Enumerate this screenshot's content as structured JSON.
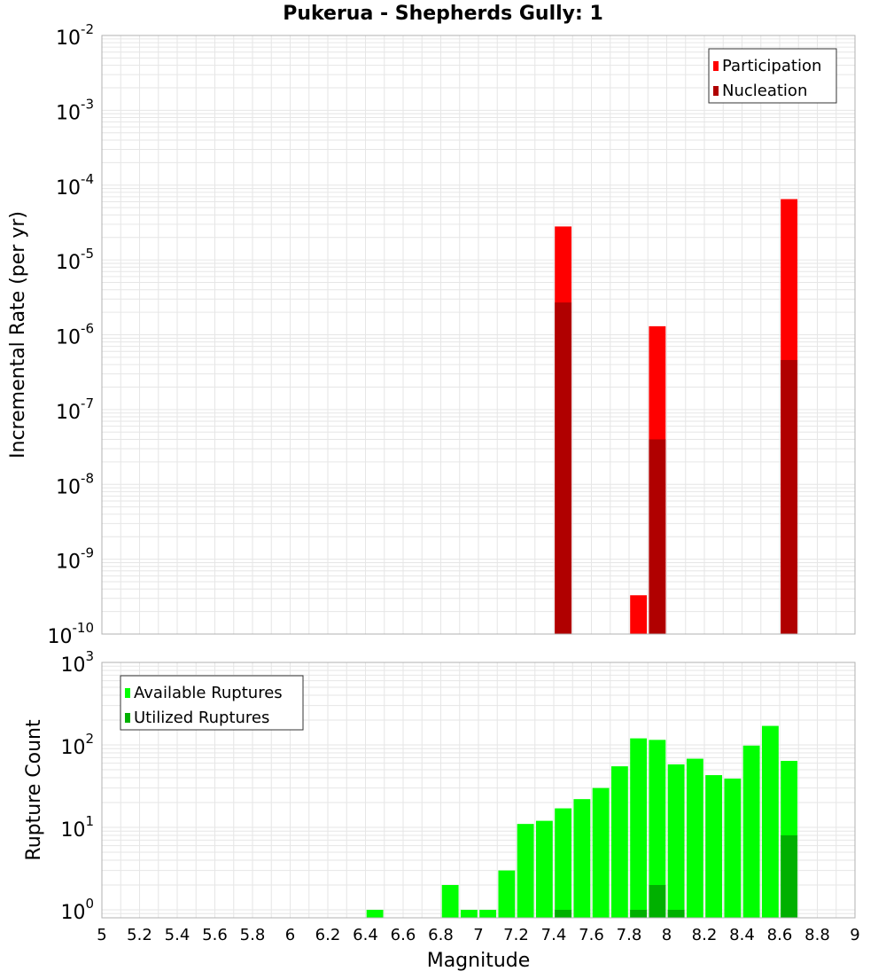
{
  "title": "Pukerua - Shepherds Gully: 1",
  "xlabel": "Magnitude",
  "x_ticks": [
    "5",
    "5.2",
    "5.4",
    "5.6",
    "5.8",
    "6",
    "6.2",
    "6.4",
    "6.6",
    "6.8",
    "7",
    "7.2",
    "7.4",
    "7.6",
    "7.8",
    "8",
    "8.2",
    "8.4",
    "8.6",
    "8.8",
    "9"
  ],
  "colors": {
    "participation": "#ff0000",
    "nucleation": "#b00000",
    "available": "#00ff00",
    "utilized": "#00b000",
    "grid": "#e6e6e6",
    "frame": "#b0b0b0"
  },
  "chart_data": [
    {
      "type": "bar",
      "ylabel": "Incremental Rate (per yr)",
      "scale": "log",
      "ylim": [
        1e-10,
        0.01
      ],
      "xlim": [
        5,
        9
      ],
      "bin_width": 0.1,
      "grid": true,
      "legend_position": "top-right",
      "y_ticks": [
        {
          "base": "10",
          "exp": "-10"
        },
        {
          "base": "10",
          "exp": "-9"
        },
        {
          "base": "10",
          "exp": "-8"
        },
        {
          "base": "10",
          "exp": "-7"
        },
        {
          "base": "10",
          "exp": "-6"
        },
        {
          "base": "10",
          "exp": "-5"
        },
        {
          "base": "10",
          "exp": "-4"
        },
        {
          "base": "10",
          "exp": "-3"
        },
        {
          "base": "10",
          "exp": "-2"
        }
      ],
      "series": [
        {
          "name": "Participation",
          "color": "#ff0000",
          "x": [
            7.45,
            7.85,
            7.95,
            8.65
          ],
          "values": [
            2.8e-05,
            3.3e-10,
            1.3e-06,
            6.5e-05
          ]
        },
        {
          "name": "Nucleation",
          "color": "#b00000",
          "x": [
            7.45,
            7.95,
            8.65
          ],
          "values": [
            2.7e-06,
            4e-08,
            4.6e-07
          ]
        }
      ]
    },
    {
      "type": "bar",
      "ylabel": "Rupture Count",
      "scale": "log",
      "ylim": [
        0.8,
        1000
      ],
      "xlim": [
        5,
        9
      ],
      "bin_width": 0.1,
      "grid": true,
      "legend_position": "top-left",
      "y_ticks": [
        {
          "base": "10",
          "exp": "0"
        },
        {
          "base": "10",
          "exp": "1"
        },
        {
          "base": "10",
          "exp": "2"
        },
        {
          "base": "10",
          "exp": "3"
        }
      ],
      "series": [
        {
          "name": "Available Ruptures",
          "color": "#00ff00",
          "x": [
            6.45,
            6.85,
            6.95,
            7.05,
            7.15,
            7.25,
            7.35,
            7.45,
            7.55,
            7.65,
            7.75,
            7.85,
            7.95,
            8.05,
            8.15,
            8.25,
            8.35,
            8.45,
            8.55,
            8.65
          ],
          "values": [
            1,
            2,
            1,
            1,
            3,
            11,
            12,
            17,
            22,
            30,
            55,
            120,
            115,
            58,
            68,
            43,
            39,
            98,
            170,
            64
          ]
        },
        {
          "name": "Utilized Ruptures",
          "color": "#00b000",
          "x": [
            7.45,
            7.85,
            7.95,
            8.05,
            8.65
          ],
          "values": [
            1,
            1,
            2,
            1,
            8
          ]
        }
      ]
    }
  ]
}
